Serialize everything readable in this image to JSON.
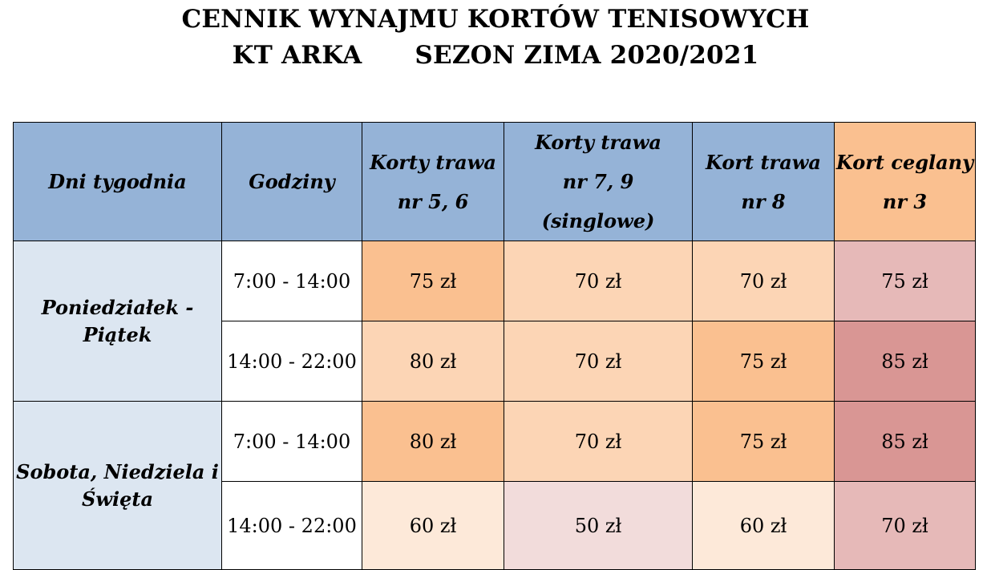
{
  "title": {
    "line1": "CENNIK WYNAJMU KORTÓW TENISOWYCH",
    "club": "KT ARKA",
    "season": "SEZON ZIMA 2020/2021"
  },
  "table": {
    "headers": {
      "days": "Dni tygodnia",
      "hours": "Godziny",
      "court1": {
        "line1": "Korty trawa",
        "line2": "nr 5, 6"
      },
      "court2": {
        "line1": "Korty trawa",
        "line2": "nr 7, 9 (singlowe)"
      },
      "court3": {
        "line1": "Kort trawa",
        "line2": "nr 8"
      },
      "court4": {
        "line1": "Kort ceglany",
        "line2": "nr 3"
      }
    },
    "groups": [
      {
        "day_line1": "Poniedziałek -",
        "day_line2": "Piątek",
        "rows": [
          {
            "hours": "7:00 - 14:00",
            "prices": [
              "75 zł",
              "70 zł",
              "70 zł",
              "75 zł"
            ]
          },
          {
            "hours": "14:00 - 22:00",
            "prices": [
              "80 zł",
              "70 zł",
              "75 zł",
              "85 zł"
            ]
          }
        ]
      },
      {
        "day_line1": "Sobota, Niedziela i",
        "day_line2": "Święta",
        "rows": [
          {
            "hours": "7:00 - 14:00",
            "prices": [
              "80 zł",
              "70 zł",
              "75 zł",
              "85 zł"
            ]
          },
          {
            "hours": "14:00 - 22:00",
            "prices": [
              "60 zł",
              "50 zł",
              "60 zł",
              "70 zł"
            ]
          }
        ]
      }
    ]
  },
  "colors": {
    "header_blue": "#95b3d7",
    "header_orange": "#fac090",
    "day_cell": "#dce6f1",
    "price_dark_orange": "#fac090",
    "price_mid_orange": "#fcd5b5",
    "price_light_orange": "#fde9d9",
    "price_pink": "#e6b9b8",
    "price_rose": "#d99694",
    "price_pale_pink": "#f2dcdb"
  }
}
